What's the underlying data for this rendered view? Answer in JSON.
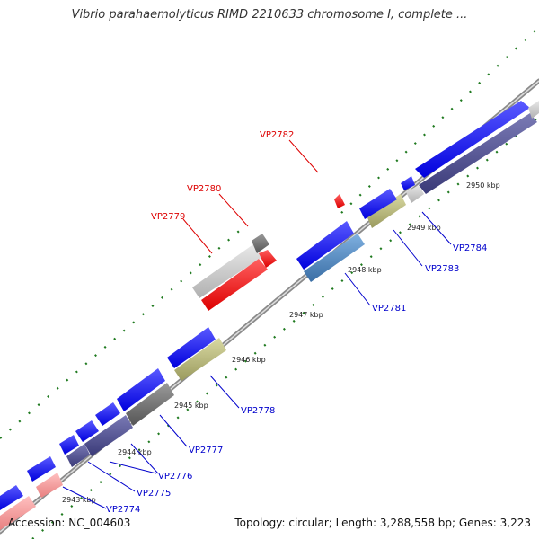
{
  "title": "Vibrio parahaemolyticus RIMD 2210633 chromosome I, complete ...",
  "footer": {
    "accession": "Accession: NC_004603",
    "summary": "Topology: circular; Length: 3,288,558 bp; Genes: 3,223"
  },
  "colors": {
    "backbone": "#8a8a8a",
    "ticks": "#1f7a1f",
    "gene_blue": "#0000ee",
    "gene_darkslate": "#4a4a8c",
    "gene_khaki": "#b3b37a",
    "gene_red": "#ff0000",
    "gene_pink": "#f49a9a",
    "gene_gray": "#777777",
    "gene_lightgray": "#cccccc",
    "gene_steelblue": "#4f86c0",
    "label_blue": "#0000cc",
    "label_red": "#dd0000"
  },
  "kbp_labels": [
    "2943 kbp",
    "2944 kbp",
    "2945 kbp",
    "2946 kbp",
    "2947 kbp",
    "2948 kbp",
    "2949 kbp",
    "2950 kbp"
  ],
  "gene_labels": [
    "VP2774",
    "VP2775",
    "VP2776",
    "VP2777",
    "VP2778",
    "VP2779",
    "VP2780",
    "VP2781",
    "VP2782",
    "VP2783",
    "VP2784"
  ]
}
